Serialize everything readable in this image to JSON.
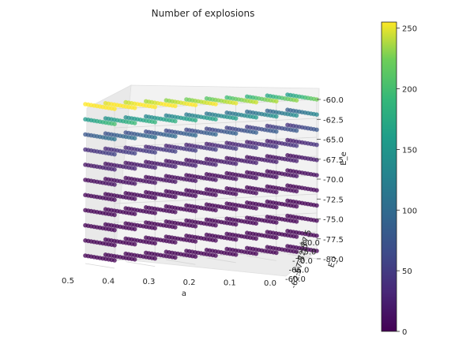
{
  "chart_data": {
    "type": "scatter",
    "projection": "3d",
    "title": "Number of explosions",
    "xlabel": "a",
    "ylabel": "E_i",
    "zlabel": "E_e",
    "x_ticks": [
      "0.5",
      "0.4",
      "0.3",
      "0.2",
      "0.1",
      "0.0"
    ],
    "y_ticks": [
      "-80.0",
      "-75.0",
      "-70.0",
      "-65.0",
      "-60.0"
    ],
    "y_ticks_partial": [
      "-77.5",
      "-72.5",
      "-67.5",
      "-62.5"
    ],
    "z_ticks": [
      "-60.0",
      "-62.5",
      "-65.0",
      "-67.5",
      "-70.0",
      "-72.5",
      "-75.0",
      "-77.5",
      "-80.0"
    ],
    "xlim": [
      0.0,
      0.5
    ],
    "ylim": [
      -80.0,
      -60.0
    ],
    "zlim": [
      -80.0,
      -60.0
    ],
    "grid": true,
    "grid_points": {
      "a": [
        0.0,
        0.05,
        0.1,
        0.15,
        0.2,
        0.25,
        0.3,
        0.35,
        0.4,
        0.45,
        0.5
      ],
      "E_i": [
        -80.0,
        -78.0,
        -76.0,
        -74.0,
        -72.0,
        -70.0,
        -68.0,
        -66.0,
        -64.0,
        -62.0,
        -60.0
      ],
      "E_e": [
        -80.0,
        -78.0,
        -76.0,
        -74.0,
        -72.0,
        -70.0,
        -68.0,
        -66.0,
        -64.0,
        -62.0,
        -60.0
      ]
    },
    "color_scale": {
      "colormap": "viridis",
      "range": [
        0,
        255
      ],
      "ticks": [
        "0",
        "50",
        "100",
        "150",
        "200",
        "250"
      ]
    }
  }
}
